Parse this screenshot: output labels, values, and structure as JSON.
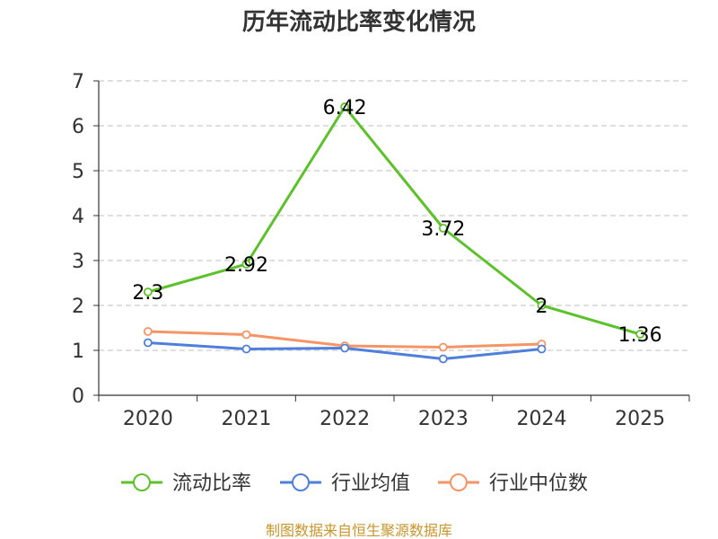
{
  "title": "历年流动比率变化情况",
  "source": "制图数据来自恒生聚源数据库",
  "chart_data": {
    "type": "line",
    "title": "历年流动比率变化情况",
    "categories": [
      "2020",
      "2021",
      "2022",
      "2023",
      "2024",
      "2025"
    ],
    "ylim": [
      0,
      7
    ],
    "yticks": [
      0,
      1,
      2,
      3,
      4,
      5,
      6,
      7
    ],
    "grid": true,
    "legend_position": "bottom",
    "series": [
      {
        "name": "流动比率",
        "color": "#5cc12a",
        "values": [
          2.3,
          2.92,
          6.42,
          3.72,
          2,
          1.36
        ],
        "labels": [
          "2.3",
          "2.92",
          "6.42",
          "3.72",
          "2",
          "1.36"
        ]
      },
      {
        "name": "行业均值",
        "color": "#4e7fdc",
        "values": [
          1.17,
          1.03,
          1.05,
          0.81,
          1.03,
          null
        ]
      },
      {
        "name": "行业中位数",
        "color": "#f59465",
        "values": [
          1.42,
          1.35,
          1.1,
          1.07,
          1.14,
          null
        ]
      }
    ]
  }
}
